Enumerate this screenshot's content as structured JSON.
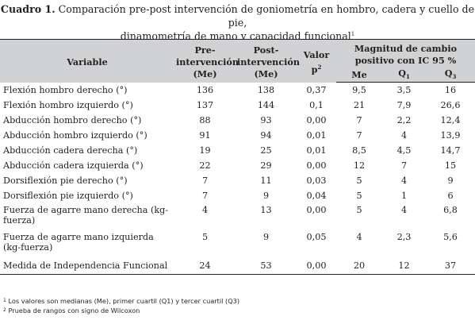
{
  "caption": {
    "label": "Cuadro 1",
    "line1": "Comparación pre-post intervención de goniometría en hombro, cadera y cuello de pie,",
    "line2": "dinamometría de mano y capacidad funcional",
    "marker": "1"
  },
  "headers": {
    "variable": "Variable",
    "pre": "Pre-intervención (Me)",
    "post": "Post-intervención (Me)",
    "valor": "Valor",
    "valor_p": "p",
    "valor_sup": "2",
    "magnitud": "Magnitud de cambio positivo con IC 95 %",
    "me": "Me",
    "q1": "Q",
    "q1_sub": "1",
    "q3": "Q",
    "q3_sub": "3"
  },
  "rows": [
    {
      "variable": "Flexión hombro derecho (°)",
      "pre": "136",
      "post": "138",
      "p": "0,37",
      "me": "9,5",
      "q1": "3,5",
      "q3": "16"
    },
    {
      "variable": "Flexión hombro izquierdo (°)",
      "pre": "137",
      "post": "144",
      "p": "0,1",
      "me": "21",
      "q1": "7,9",
      "q3": "26,6"
    },
    {
      "variable": "Abducción hombro derecho (°)",
      "pre": "88",
      "post": "93",
      "p": "0,00",
      "me": "7",
      "q1": "2,2",
      "q3": "12,4"
    },
    {
      "variable": "Abducción hombro izquierdo (°)",
      "pre": "91",
      "post": "94",
      "p": "0,01",
      "me": "7",
      "q1": "4",
      "q3": "13,9"
    },
    {
      "variable": "Abducción cadera derecha (°)",
      "pre": "19",
      "post": "25",
      "p": "0,01",
      "me": "8,5",
      "q1": "4,5",
      "q3": "14,7"
    },
    {
      "variable": "Abducción cadera izquierda (°)",
      "pre": "22",
      "post": "29",
      "p": "0,00",
      "me": "12",
      "q1": "7",
      "q3": "15"
    },
    {
      "variable": "Dorsiflexión pie derecho (°)",
      "pre": "7",
      "post": "11",
      "p": "0,03",
      "me": "5",
      "q1": "4",
      "q3": "9"
    },
    {
      "variable": "Dorsiflexión pie izquierdo (°)",
      "pre": "7",
      "post": "9",
      "p": "0,04",
      "me": "5",
      "q1": "1",
      "q3": "6"
    },
    {
      "variable": "Fuerza de agarre mano derecha (kg-fuerza)",
      "pre": "4",
      "post": "13",
      "p": "0,00",
      "me": "5",
      "q1": "4",
      "q3": "6,8"
    },
    {
      "variable": "Fuerza de agarre mano izquierda (kg-fuerza)",
      "pre": "5",
      "post": "9",
      "p": "0,05",
      "me": "4",
      "q1": "2,3",
      "q3": "5,6"
    },
    {
      "variable": "Medida de Independencia Funcional",
      "pre": "24",
      "post": "53",
      "p": "0,00",
      "me": "20",
      "q1": "12",
      "q3": "37"
    }
  ],
  "notes": {
    "n1_marker": "1",
    "n1": "Los valores son medianas (Me), primer cuartil (Q1) y tercer cuartil (Q3)",
    "n2_marker": "2",
    "n2": "Prueba de rangos con signo de Wilcoxon"
  }
}
